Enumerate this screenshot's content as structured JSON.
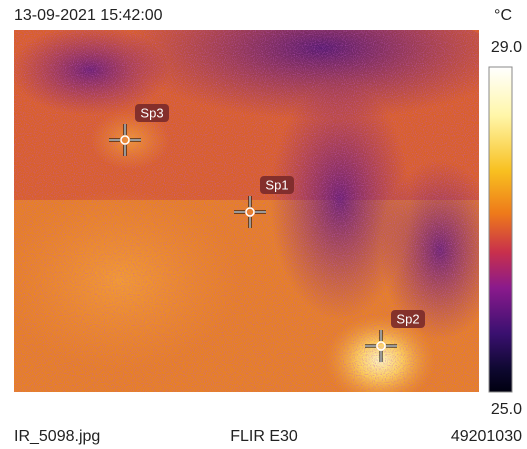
{
  "header": {
    "timestamp": "13-09-2021 15:42:00",
    "unit": "°C"
  },
  "scale": {
    "max": "29.0",
    "min": "25.0"
  },
  "spots": [
    {
      "label": "Sp1"
    },
    {
      "label": "Sp2"
    },
    {
      "label": "Sp3"
    }
  ],
  "footer": {
    "filename": "IR_5098.jpg",
    "camera": "FLIR E30",
    "serial": "49201030"
  }
}
